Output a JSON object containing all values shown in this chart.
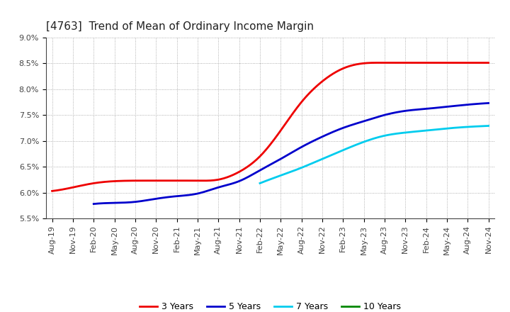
{
  "title": "[4763]  Trend of Mean of Ordinary Income Margin",
  "ylim": [
    0.055,
    0.09
  ],
  "yticks": [
    0.055,
    0.06,
    0.065,
    0.07,
    0.075,
    0.08,
    0.085,
    0.09
  ],
  "ytick_labels": [
    "5.5%",
    "6.0%",
    "6.5%",
    "7.0%",
    "7.5%",
    "8.0%",
    "8.5%",
    "9.0%"
  ],
  "x_labels": [
    "Aug-19",
    "Nov-19",
    "Feb-20",
    "May-20",
    "Aug-20",
    "Nov-20",
    "Feb-21",
    "May-21",
    "Aug-21",
    "Nov-21",
    "Feb-22",
    "May-22",
    "Aug-22",
    "Nov-22",
    "Feb-23",
    "May-23",
    "Aug-23",
    "Nov-23",
    "Feb-24",
    "May-24",
    "Aug-24",
    "Nov-24"
  ],
  "series": {
    "3 Years": {
      "color": "#ee0000",
      "data": [
        0.0603,
        0.061,
        0.0618,
        0.0622,
        0.0623,
        0.0623,
        0.0623,
        0.0623,
        0.0625,
        0.064,
        0.067,
        0.072,
        0.0775,
        0.0815,
        0.084,
        0.085,
        0.0851,
        0.0851,
        0.0851,
        0.0851,
        0.0851,
        0.0851
      ]
    },
    "5 Years": {
      "color": "#0000cc",
      "data": [
        null,
        null,
        0.0578,
        0.058,
        0.0582,
        0.0588,
        0.0593,
        0.0598,
        0.061,
        0.0622,
        0.0643,
        0.0665,
        0.0688,
        0.0708,
        0.0725,
        0.0738,
        0.075,
        0.0758,
        0.0762,
        0.0766,
        0.077,
        0.0773
      ]
    },
    "7 Years": {
      "color": "#00ccee",
      "data": [
        null,
        null,
        null,
        null,
        null,
        null,
        null,
        null,
        null,
        null,
        0.0618,
        0.0633,
        0.0648,
        0.0665,
        0.0682,
        0.0698,
        0.071,
        0.0716,
        0.072,
        0.0724,
        0.0727,
        0.0729
      ]
    },
    "10 Years": {
      "color": "#008800",
      "data": [
        null,
        null,
        null,
        null,
        null,
        null,
        null,
        null,
        null,
        null,
        null,
        null,
        null,
        null,
        null,
        null,
        null,
        null,
        null,
        null,
        null,
        null
      ]
    }
  },
  "background_color": "#ffffff",
  "plot_bg_color": "#ffffff",
  "grid_color": "#999999",
  "title_fontsize": 11,
  "tick_fontsize": 8,
  "legend_fontsize": 9,
  "linewidth": 2.0
}
